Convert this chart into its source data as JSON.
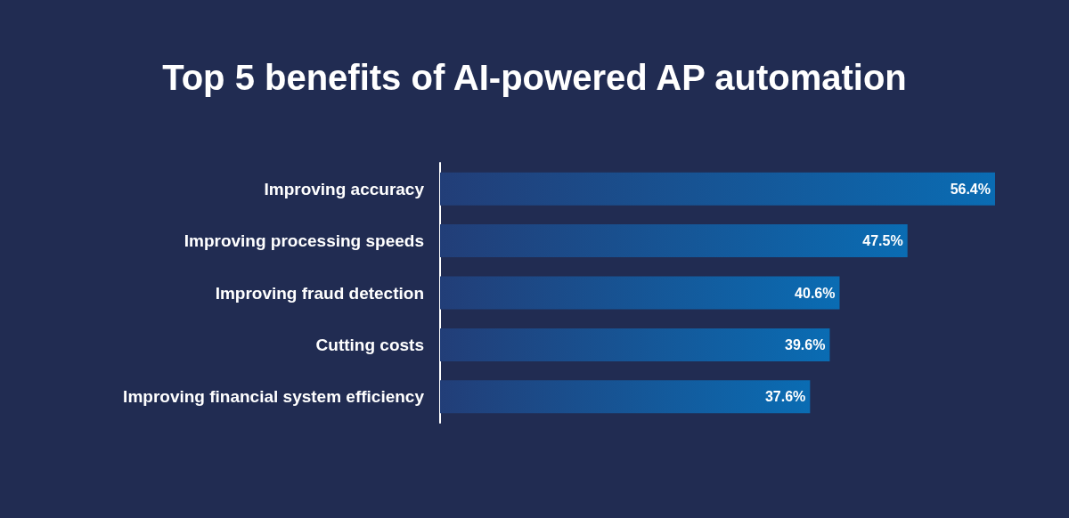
{
  "chart_data": {
    "type": "bar",
    "title": "Top 5 benefits of AI-powered AP automation",
    "orientation": "horizontal",
    "categories": [
      "Improving accuracy",
      "Improving processing speeds",
      "Improving fraud detection",
      "Cutting costs",
      "Improving financial system efficiency"
    ],
    "series": [
      {
        "color": "#0a6cb3",
        "values": [
          56.4,
          47.5,
          40.6,
          39.6,
          37.6
        ],
        "value_labels": [
          "56.4%",
          "47.5%",
          "40.6%",
          "39.6%",
          "37.6%"
        ]
      }
    ]
  }
}
